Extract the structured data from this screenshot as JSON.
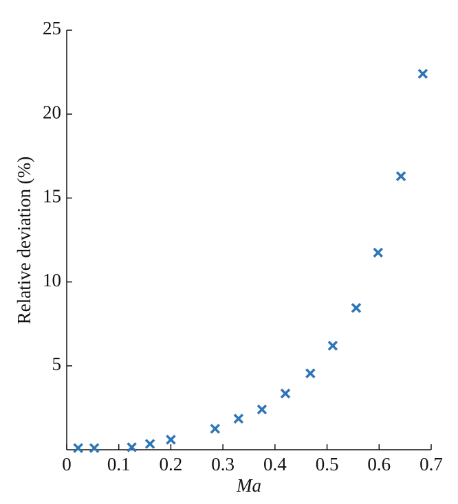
{
  "chart_data": {
    "type": "scatter",
    "x_label": "Ma",
    "y_label": "Relative deviation (%)",
    "color": "#2e75b6",
    "x": [
      0.022,
      0.053,
      0.125,
      0.16,
      0.2,
      0.285,
      0.33,
      0.375,
      0.42,
      0.468,
      0.511,
      0.556,
      0.598,
      0.642,
      0.684
    ],
    "values": [
      0.1,
      0.1,
      0.15,
      0.35,
      0.6,
      1.25,
      1.85,
      2.4,
      3.35,
      4.55,
      6.2,
      8.45,
      11.75,
      16.3,
      22.4
    ],
    "xlim": [
      0,
      0.7
    ],
    "xticks": [
      0,
      0.1,
      0.2,
      0.3,
      0.4,
      0.5,
      0.6,
      0.7
    ],
    "ylim": [
      0,
      25
    ],
    "yticks": [
      5,
      10,
      15,
      20,
      25
    ]
  }
}
